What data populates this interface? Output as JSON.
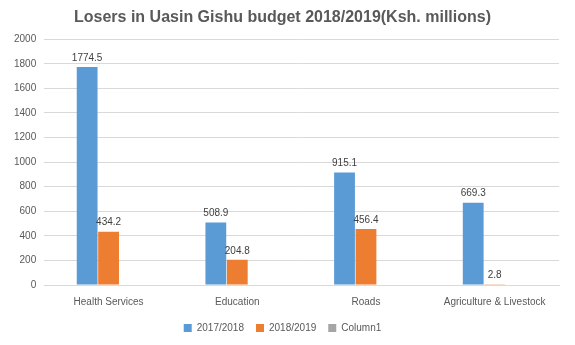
{
  "chart_data": {
    "type": "bar",
    "title": "Losers in Uasin Gishu budget 2018/2019(Ksh. millions)",
    "categories": [
      "Health Services",
      "Education",
      "Roads",
      "Agriculture & Livestock"
    ],
    "series": [
      {
        "name": "2017/2018",
        "color": "#5b9bd5",
        "values": [
          1774.5,
          508.9,
          915.1,
          669.3
        ]
      },
      {
        "name": "2018/2019",
        "color": "#ed7d31",
        "values": [
          434.2,
          204.8,
          456.4,
          2.8
        ]
      },
      {
        "name": "Column1",
        "color": "#a5a5a5",
        "values": [
          null,
          null,
          null,
          null
        ]
      }
    ],
    "ylim": [
      0,
      2000
    ],
    "yticks": [
      0,
      200,
      400,
      600,
      800,
      1000,
      1200,
      1400,
      1600,
      1800,
      2000
    ],
    "grid": true,
    "legend": "bottom",
    "data_labels": true
  }
}
